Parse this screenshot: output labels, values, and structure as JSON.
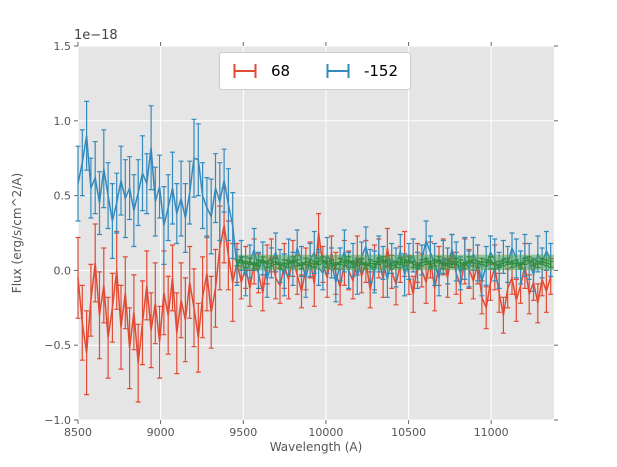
{
  "figure": {
    "background": "#ffffff",
    "plot_bg": "#e5e5e5",
    "grid_color": "#ffffff",
    "tick_color": "#666666",
    "text_color": "#555555"
  },
  "legend": {
    "entries": [
      {
        "label": "68",
        "color": "#e24a33"
      },
      {
        "label": "-152",
        "color": "#348abd"
      }
    ]
  },
  "chart_data": {
    "type": "line",
    "subtype": "errorbar",
    "title": "",
    "offset_text": "1e−18",
    "xlabel": "Wavelength (A)",
    "ylabel": "Flux (erg/s/cm^2/A)",
    "xlim": [
      8500,
      11380
    ],
    "ylim": [
      -1.0,
      1.5
    ],
    "grid": true,
    "legend_position": "upper center",
    "xticks": {
      "values": [
        8500,
        9000,
        9500,
        10000,
        10500,
        11000
      ],
      "labels": [
        "8500",
        "9000",
        "9500",
        "10000",
        "10500",
        "11000"
      ]
    },
    "yticks": {
      "values": [
        1.5,
        1.0,
        0.5,
        0.0,
        -0.5,
        -1.0
      ],
      "labels": [
        "1.5",
        "1.0",
        "0.5",
        "0.0",
        "−0.5",
        "−1.0"
      ]
    },
    "band": {
      "x0": 9462,
      "x1": 11380,
      "y0": 0.0,
      "y1": 0.105,
      "color": "rgba(70,160,73,0.5)"
    },
    "series": [
      {
        "name": "68",
        "color": "#e24a33",
        "x_start": 8500,
        "x_step": 26,
        "y": [
          -0.05,
          -0.35,
          -0.55,
          -0.2,
          0.05,
          -0.3,
          -0.1,
          -0.45,
          -0.25,
          0.0,
          -0.38,
          -0.15,
          -0.52,
          -0.28,
          -0.62,
          -0.35,
          -0.1,
          -0.4,
          -0.22,
          -0.48,
          -0.15,
          -0.3,
          -0.05,
          -0.42,
          -0.2,
          -0.33,
          -0.08,
          -0.25,
          -0.45,
          -0.18,
          -0.02,
          -0.28,
          -0.12,
          0.15,
          0.3,
          0.1,
          -0.08,
          0.05,
          -0.08,
          0.02,
          -0.12,
          0.06,
          -0.02,
          -0.15,
          0.04,
          0.1,
          -0.05,
          -0.1,
          0.03,
          -0.06,
          0.08,
          -0.03,
          -0.14,
          0.01,
          0.07,
          -0.09,
          0.25,
          0.04,
          -0.05,
          0.12,
          -0.02,
          -0.11,
          0.05,
          0.0,
          -0.07,
          0.1,
          -0.04,
          0.06,
          -0.13,
          0.02,
          0.08,
          -0.06,
          0.15,
          -0.01,
          -0.09,
          0.04,
          0.11,
          -0.03,
          -0.16,
          0.05,
          0.0,
          -0.08,
          0.07,
          -0.12,
          0.03,
          0.09,
          -0.05,
          0.13,
          -0.02,
          -0.1,
          0.06,
          0.01,
          -0.07,
          0.04,
          -0.18,
          -0.25,
          -0.08,
          0.02,
          -0.15,
          -0.3,
          -0.12,
          -0.05,
          -0.2,
          -0.1,
          0.03,
          -0.16,
          -0.08,
          -0.22,
          -0.06,
          -0.14,
          -0.04
        ],
        "yerr": [
          0.27,
          0.25,
          0.28,
          0.24,
          0.26,
          0.29,
          0.25,
          0.27,
          0.23,
          0.26,
          0.28,
          0.24,
          0.27,
          0.25,
          0.26,
          0.28,
          0.23,
          0.25,
          0.27,
          0.24,
          0.28,
          0.26,
          0.22,
          0.27,
          0.25,
          0.28,
          0.24,
          0.26,
          0.23,
          0.27,
          0.25,
          0.24,
          0.26,
          0.28,
          0.25,
          0.23,
          0.26,
          0.13,
          0.11,
          0.14,
          0.12,
          0.15,
          0.13,
          0.12,
          0.13,
          0.11,
          0.14,
          0.12,
          0.15,
          0.13,
          0.12,
          0.13,
          0.11,
          0.14,
          0.12,
          0.15,
          0.13,
          0.12,
          0.13,
          0.11,
          0.14,
          0.12,
          0.15,
          0.13,
          0.12,
          0.13,
          0.11,
          0.14,
          0.12,
          0.15,
          0.13,
          0.12,
          0.13,
          0.11,
          0.14,
          0.12,
          0.15,
          0.13,
          0.12,
          0.13,
          0.11,
          0.14,
          0.12,
          0.15,
          0.13,
          0.12,
          0.13,
          0.11,
          0.14,
          0.12,
          0.15,
          0.13,
          0.12,
          0.13,
          0.11,
          0.14,
          0.12,
          0.15,
          0.13,
          0.12,
          0.13,
          0.11,
          0.14,
          0.12,
          0.15,
          0.13,
          0.12,
          0.13,
          0.11,
          0.14,
          0.12
        ]
      },
      {
        "name": "-152",
        "color": "#348abd",
        "x_start": 8500,
        "x_step": 26,
        "y": [
          0.58,
          0.72,
          0.9,
          0.55,
          0.62,
          0.45,
          0.68,
          0.5,
          0.33,
          0.45,
          0.6,
          0.48,
          0.55,
          0.4,
          0.52,
          0.65,
          0.58,
          0.82,
          0.46,
          0.56,
          0.3,
          0.42,
          0.55,
          0.38,
          0.48,
          0.35,
          0.52,
          0.75,
          0.74,
          0.5,
          0.42,
          0.36,
          0.55,
          0.46,
          0.6,
          0.44,
          0.3,
          0.02,
          0.1,
          -0.04,
          0.06,
          0.14,
          0.0,
          0.08,
          -0.06,
          0.05,
          0.12,
          0.03,
          -0.03,
          0.09,
          0.01,
          0.15,
          0.06,
          -0.05,
          0.07,
          0.12,
          0.02,
          -0.02,
          0.1,
          0.05,
          -0.08,
          0.04,
          0.13,
          0.0,
          0.07,
          -0.04,
          0.09,
          0.16,
          0.03,
          -0.01,
          0.11,
          0.05,
          -0.06,
          0.08,
          0.02,
          0.13,
          -0.03,
          0.06,
          0.1,
          0.0,
          0.07,
          0.2,
          0.12,
          0.04,
          -0.05,
          0.09,
          0.03,
          0.14,
          0.06,
          -0.02,
          0.08,
          0.01,
          0.11,
          0.05,
          -0.07,
          0.03,
          0.12,
          0.07,
          0.0,
          0.09,
          0.04,
          0.15,
          0.08,
          0.02,
          0.1,
          0.06,
          -0.03,
          0.11,
          0.05,
          0.13,
          0.07
        ],
        "yerr": [
          0.25,
          0.22,
          0.23,
          0.2,
          0.24,
          0.21,
          0.26,
          0.22,
          0.25,
          0.2,
          0.23,
          0.26,
          0.21,
          0.24,
          0.22,
          0.25,
          0.2,
          0.28,
          0.23,
          0.21,
          0.26,
          0.22,
          0.24,
          0.2,
          0.25,
          0.23,
          0.21,
          0.26,
          0.24,
          0.22,
          0.2,
          0.25,
          0.23,
          0.26,
          0.21,
          0.24,
          0.22,
          0.12,
          0.1,
          0.13,
          0.11,
          0.14,
          0.12,
          0.11,
          0.12,
          0.1,
          0.13,
          0.11,
          0.14,
          0.12,
          0.11,
          0.12,
          0.1,
          0.13,
          0.11,
          0.14,
          0.12,
          0.11,
          0.12,
          0.1,
          0.13,
          0.11,
          0.14,
          0.12,
          0.11,
          0.12,
          0.1,
          0.13,
          0.11,
          0.14,
          0.12,
          0.11,
          0.12,
          0.1,
          0.13,
          0.11,
          0.14,
          0.12,
          0.11,
          0.12,
          0.1,
          0.13,
          0.11,
          0.14,
          0.12,
          0.11,
          0.12,
          0.1,
          0.13,
          0.11,
          0.14,
          0.12,
          0.11,
          0.12,
          0.1,
          0.13,
          0.11,
          0.14,
          0.12,
          0.11,
          0.12,
          0.1,
          0.13,
          0.11,
          0.14,
          0.12,
          0.11,
          0.12,
          0.1,
          0.13,
          0.11
        ]
      },
      {
        "name": "",
        "color": "#2f8b3d",
        "x_start": 9462,
        "x_step": 26,
        "yerr_const": 0.02,
        "y": [
          0.05,
          0.07,
          0.04,
          0.06,
          0.03,
          0.05,
          0.07,
          0.04,
          0.05,
          0.06,
          0.03,
          0.05,
          0.04,
          0.07,
          0.05,
          0.03,
          0.06,
          0.05,
          0.04,
          0.06,
          0.07,
          0.04,
          0.05,
          0.03,
          0.06,
          0.05,
          0.07,
          0.04,
          0.05,
          0.06,
          0.03,
          0.05,
          0.04,
          0.06,
          0.07,
          0.05,
          0.03,
          0.04,
          0.06,
          0.05,
          0.07,
          0.04,
          0.03,
          0.05,
          0.06,
          0.04,
          0.05,
          0.07,
          0.03,
          0.05,
          0.04,
          0.06,
          0.05,
          0.03,
          0.07,
          0.05,
          0.04,
          0.06,
          0.05,
          0.07,
          0.03,
          0.04,
          0.05,
          0.06,
          0.04,
          0.05,
          0.03,
          0.06,
          0.07,
          0.05,
          0.04,
          0.06,
          0.05,
          0.04
        ]
      }
    ]
  }
}
